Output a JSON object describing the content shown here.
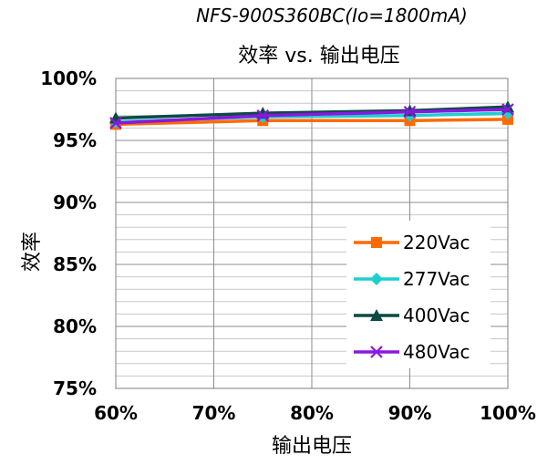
{
  "chart_data": {
    "type": "line",
    "subtitle": "NFS-900S360BC(Io=1800mA)",
    "title": "效率 vs. 输出电压",
    "xlabel": "输出电压",
    "ylabel": "效率",
    "x": [
      60,
      75,
      90,
      100
    ],
    "xlim": [
      60,
      100
    ],
    "ylim": [
      75,
      100
    ],
    "x_ticks": [
      "60%",
      "70%",
      "80%",
      "90%",
      "100%"
    ],
    "y_ticks": [
      "75%",
      "80%",
      "85%",
      "90%",
      "95%",
      "100%"
    ],
    "grid": true,
    "legend_position": "bottom-right",
    "series": [
      {
        "name": "220Vac",
        "color": "#FF6A00",
        "marker": "square",
        "values": [
          96.3,
          96.6,
          96.6,
          96.7
        ]
      },
      {
        "name": "277Vac",
        "color": "#1FCFD0",
        "marker": "diamond",
        "values": [
          96.5,
          96.9,
          97.0,
          97.2
        ]
      },
      {
        "name": "400Vac",
        "color": "#0B4A45",
        "marker": "triangle",
        "values": [
          96.8,
          97.2,
          97.4,
          97.7
        ]
      },
      {
        "name": "480Vac",
        "color": "#8A18E0",
        "marker": "x",
        "values": [
          96.4,
          97.0,
          97.3,
          97.5
        ]
      }
    ]
  }
}
